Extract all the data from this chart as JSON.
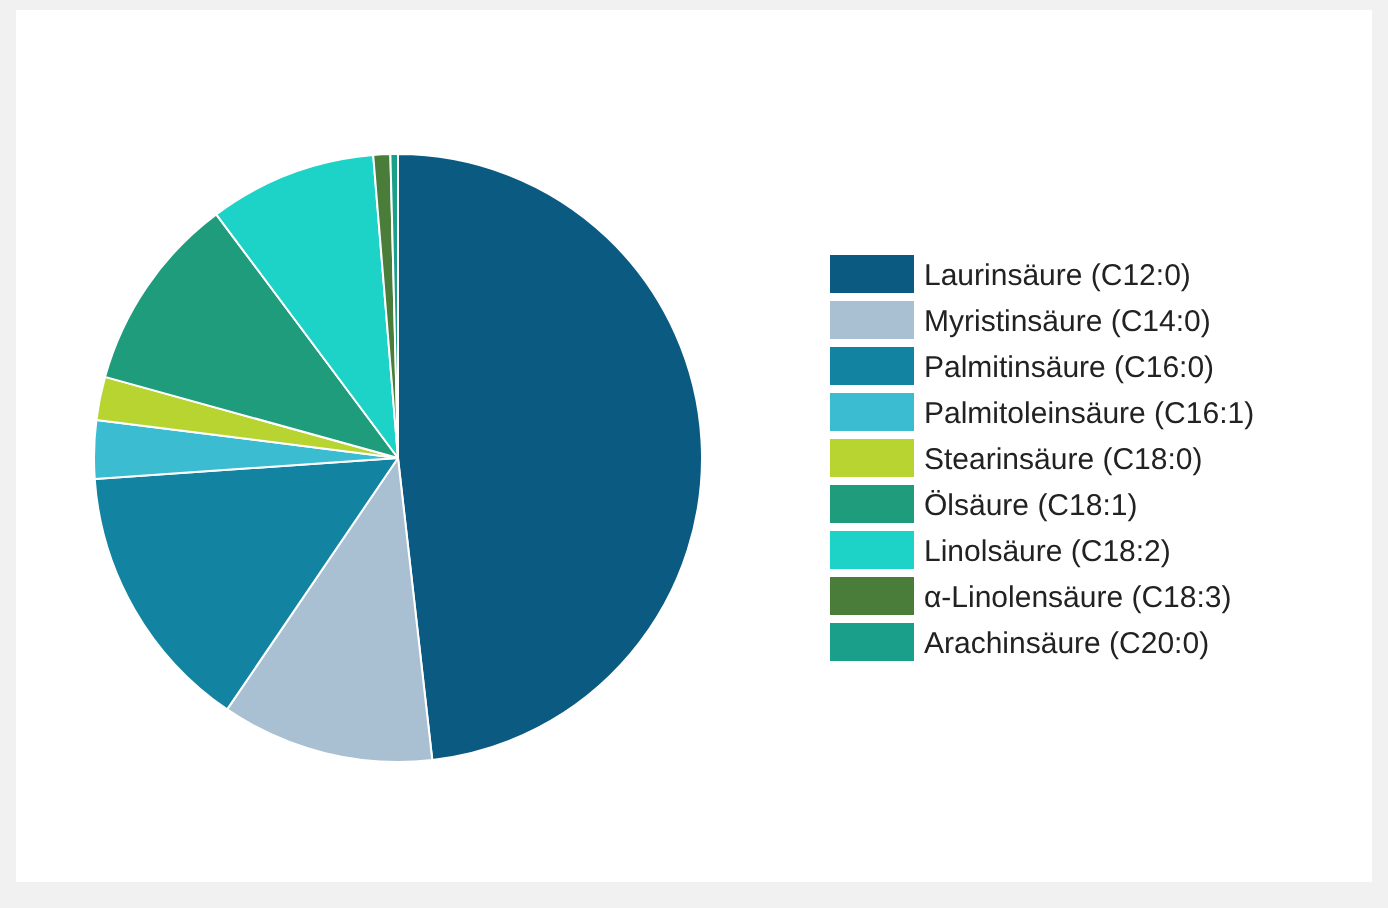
{
  "chart_data": {
    "type": "pie",
    "categories": [
      "Laurinsäure (C12:0)",
      "Myristinsäure (C14:0)",
      "Palmitinsäure (C16:0)",
      "Palmitoleinsäure (C16:1)",
      "Stearinsäure (C18:0)",
      "Ölsäure (C18:1)",
      "Linolsäure (C18:2)",
      "α-Linolensäure (C18:3)",
      "Arachinsäure (C20:0)"
    ],
    "values": [
      48.2,
      11.3,
      14.4,
      3.1,
      2.3,
      10.5,
      8.9,
      0.9,
      0.4
    ],
    "colors": [
      "#0b5a82",
      "#a9bfd2",
      "#1283a0",
      "#3cbcd0",
      "#b8d430",
      "#1f9c7c",
      "#1dd3c8",
      "#4a7c3a",
      "#1aa08a"
    ],
    "legend": "right"
  }
}
